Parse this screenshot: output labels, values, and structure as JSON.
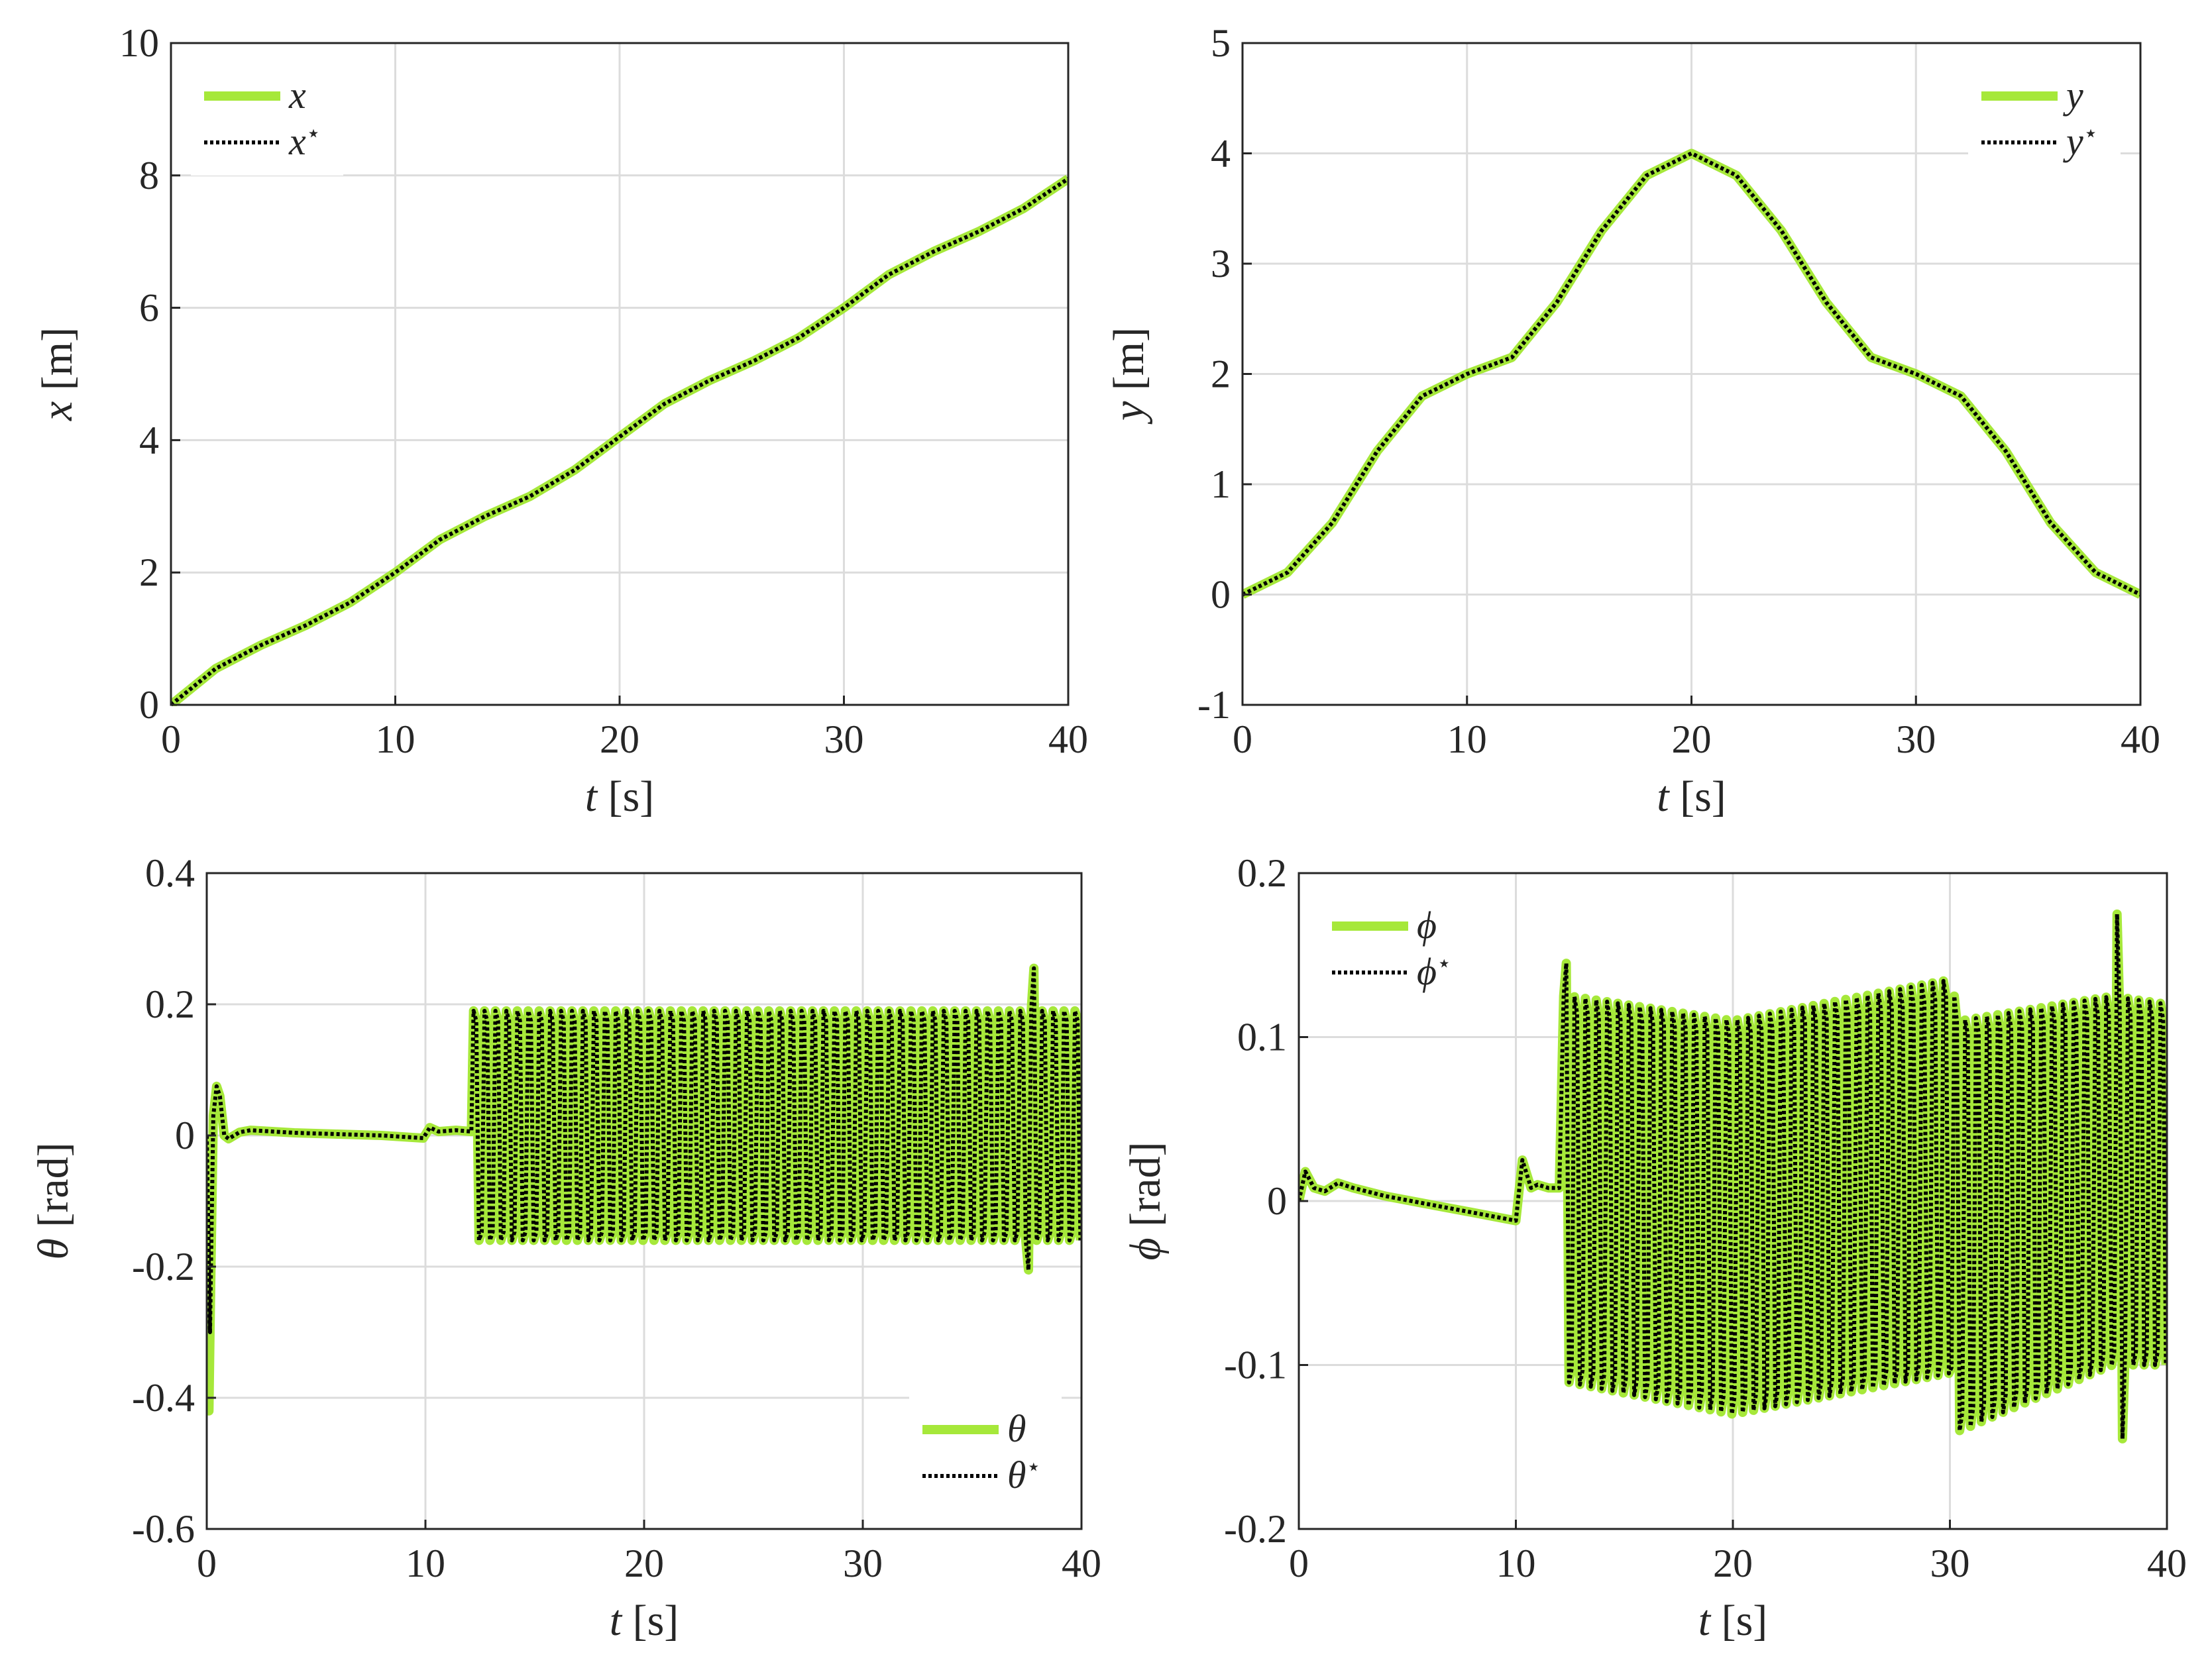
{
  "colors": {
    "actual": "#a6e83a",
    "reference": "#000000",
    "grid": "#dcdcdc",
    "axis": "#262626"
  },
  "chart_data": [
    {
      "type": "line",
      "panel": "top-left",
      "xlabel": {
        "var": "t",
        "unit": "[s]"
      },
      "ylabel": {
        "var": "x",
        "unit": "[m]"
      },
      "xlim": [
        0,
        40
      ],
      "ylim": [
        0,
        10
      ],
      "xticks": [
        0,
        10,
        20,
        30,
        40
      ],
      "xtick_labels": [
        "0",
        "10",
        "20",
        "30",
        "40"
      ],
      "yticks": [
        0,
        2,
        4,
        6,
        8,
        10
      ],
      "ytick_labels": [
        "0",
        "2",
        "4",
        "6",
        "8",
        "10"
      ],
      "grid": true,
      "legend": {
        "position": "top-left",
        "entries": [
          {
            "label": "x",
            "sup": "",
            "style": "solid"
          },
          {
            "label": "x",
            "sup": "⋆",
            "style": "dotted"
          }
        ]
      },
      "series": [
        {
          "name": "x",
          "style": "solid",
          "x": [
            0,
            2,
            4,
            6,
            8,
            10,
            12,
            14,
            16,
            18,
            20,
            22,
            24,
            26,
            28,
            30,
            32,
            34,
            36,
            38,
            40
          ],
          "y": [
            0,
            0.55,
            0.9,
            1.2,
            1.55,
            2.0,
            2.5,
            2.85,
            3.15,
            3.55,
            4.05,
            4.55,
            4.9,
            5.2,
            5.55,
            6.0,
            6.5,
            6.85,
            7.15,
            7.5,
            7.95
          ]
        },
        {
          "name": "x⋆",
          "style": "dotted",
          "x": [
            0,
            2,
            4,
            6,
            8,
            10,
            12,
            14,
            16,
            18,
            20,
            22,
            24,
            26,
            28,
            30,
            32,
            34,
            36,
            38,
            40
          ],
          "y": [
            0,
            0.55,
            0.9,
            1.2,
            1.55,
            2.0,
            2.5,
            2.85,
            3.15,
            3.55,
            4.05,
            4.55,
            4.9,
            5.2,
            5.55,
            6.0,
            6.5,
            6.85,
            7.15,
            7.5,
            7.95
          ]
        }
      ]
    },
    {
      "type": "line",
      "panel": "top-right",
      "xlabel": {
        "var": "t",
        "unit": "[s]"
      },
      "ylabel": {
        "var": "y",
        "unit": "[m]"
      },
      "xlim": [
        0,
        40
      ],
      "ylim": [
        -1,
        5
      ],
      "xticks": [
        0,
        10,
        20,
        30,
        40
      ],
      "xtick_labels": [
        "0",
        "10",
        "20",
        "30",
        "40"
      ],
      "yticks": [
        -1,
        0,
        1,
        2,
        3,
        4,
        5
      ],
      "ytick_labels": [
        "-1",
        "0",
        "1",
        "2",
        "3",
        "4",
        "5"
      ],
      "grid": true,
      "legend": {
        "position": "top-right",
        "entries": [
          {
            "label": "y",
            "sup": "",
            "style": "solid"
          },
          {
            "label": "y",
            "sup": "⋆",
            "style": "dotted"
          }
        ]
      },
      "series": [
        {
          "name": "y",
          "style": "solid",
          "x": [
            0,
            2,
            4,
            6,
            8,
            10,
            12,
            14,
            16,
            18,
            20,
            22,
            24,
            26,
            28,
            30,
            32,
            34,
            36,
            38,
            40
          ],
          "y": [
            0,
            0.2,
            0.65,
            1.3,
            1.8,
            2.0,
            2.15,
            2.65,
            3.3,
            3.8,
            4.0,
            3.8,
            3.3,
            2.65,
            2.15,
            2.0,
            1.8,
            1.3,
            0.65,
            0.2,
            0
          ]
        },
        {
          "name": "y⋆",
          "style": "dotted",
          "x": [
            0,
            2,
            4,
            6,
            8,
            10,
            12,
            14,
            16,
            18,
            20,
            22,
            24,
            26,
            28,
            30,
            32,
            34,
            36,
            38,
            40
          ],
          "y": [
            0,
            0.2,
            0.65,
            1.3,
            1.8,
            2.0,
            2.15,
            2.65,
            3.3,
            3.8,
            4.0,
            3.8,
            3.3,
            2.65,
            2.15,
            2.0,
            1.8,
            1.3,
            0.65,
            0.2,
            0
          ]
        }
      ]
    },
    {
      "type": "line",
      "panel": "bottom-left",
      "xlabel": {
        "var": "t",
        "unit": "[s]"
      },
      "ylabel": {
        "var": "θ",
        "unit": "[rad]"
      },
      "xlim": [
        0,
        40
      ],
      "ylim": [
        -0.6,
        0.4
      ],
      "xticks": [
        0,
        10,
        20,
        30,
        40
      ],
      "xtick_labels": [
        "0",
        "10",
        "20",
        "30",
        "40"
      ],
      "yticks": [
        -0.6,
        -0.4,
        -0.2,
        0,
        0.2,
        0.4
      ],
      "ytick_labels": [
        "-0.6",
        "-0.4",
        "-0.2",
        "0",
        "0.2",
        "0.4"
      ],
      "grid": true,
      "legend": {
        "position": "bottom-right",
        "entries": [
          {
            "label": "θ",
            "sup": "",
            "style": "solid"
          },
          {
            "label": "θ",
            "sup": "⋆",
            "style": "dotted"
          }
        ]
      },
      "series": [
        {
          "name": "θ",
          "style": "solid",
          "x": [
            0,
            0.1,
            0.15,
            0.3,
            0.45,
            0.6,
            0.8,
            1.0,
            1.5,
            2,
            4,
            6,
            8,
            9.9,
            10.2,
            10.6,
            11,
            11.4,
            12.1
          ],
          "y": [
            0,
            -0.42,
            -0.3,
            0.03,
            0.075,
            0.06,
            0.0,
            -0.005,
            0.005,
            0.008,
            0.004,
            0.002,
            0.0,
            -0.004,
            0.012,
            0.006,
            0.007,
            0.008,
            0.006
          ]
        },
        {
          "name": "θ⋆",
          "style": "dotted",
          "x": [
            0,
            0.15,
            0.3,
            0.45,
            0.6,
            0.8,
            1.0,
            1.5,
            2,
            4,
            6,
            8,
            9.9,
            10.2,
            10.6,
            11,
            11.4,
            12.1
          ],
          "y": [
            0,
            -0.3,
            0.03,
            0.075,
            0.06,
            0.0,
            -0.005,
            0.005,
            0.008,
            0.004,
            0.002,
            0.0,
            -0.004,
            0.012,
            0.006,
            0.007,
            0.008,
            0.006
          ]
        }
      ],
      "oscillation": {
        "t_start": 12.2,
        "t_end": 40,
        "period": 0.5,
        "upper": 0.19,
        "lower": -0.16,
        "spikes": [
          {
            "t": 37.8,
            "value": 0.255
          },
          {
            "t": 37.6,
            "value": -0.205
          }
        ]
      }
    },
    {
      "type": "line",
      "panel": "bottom-right",
      "xlabel": {
        "var": "t",
        "unit": "[s]"
      },
      "ylabel": {
        "var": "ϕ",
        "unit": "[rad]"
      },
      "xlim": [
        0,
        40
      ],
      "ylim": [
        -0.2,
        0.2
      ],
      "xticks": [
        0,
        10,
        20,
        30,
        40
      ],
      "xtick_labels": [
        "0",
        "10",
        "20",
        "30",
        "40"
      ],
      "yticks": [
        -0.2,
        -0.1,
        0,
        0.1,
        0.2
      ],
      "ytick_labels": [
        "-0.2",
        "-0.1",
        "0",
        "0.1",
        "0.2"
      ],
      "grid": true,
      "legend": {
        "position": "top-left",
        "entries": [
          {
            "label": "ϕ",
            "sup": "",
            "style": "solid"
          },
          {
            "label": "ϕ",
            "sup": "⋆",
            "style": "dotted"
          }
        ]
      },
      "series": [
        {
          "name": "ϕ",
          "style": "solid",
          "x": [
            0,
            0.3,
            0.7,
            1.2,
            1.8,
            2.5,
            4,
            6,
            8,
            10,
            10.3,
            10.7,
            11,
            11.5,
            12
          ],
          "y": [
            0,
            0.018,
            0.008,
            0.006,
            0.011,
            0.008,
            0.003,
            -0.002,
            -0.007,
            -0.012,
            0.025,
            0.008,
            0.01,
            0.008,
            0.008
          ]
        },
        {
          "name": "ϕ⋆",
          "style": "dotted",
          "x": [
            0,
            0.3,
            0.7,
            1.2,
            1.8,
            2.5,
            4,
            6,
            8,
            10,
            10.3,
            10.7,
            11,
            11.5,
            12
          ],
          "y": [
            0,
            0.018,
            0.008,
            0.006,
            0.011,
            0.008,
            0.003,
            -0.002,
            -0.007,
            -0.012,
            0.025,
            0.008,
            0.01,
            0.008,
            0.008
          ]
        }
      ],
      "oscillation": {
        "t_start": 12.2,
        "t_end": 40,
        "period": 0.5,
        "upper_envelope": {
          "t": [
            12.5,
            20,
            30,
            30.5,
            37.5,
            40
          ],
          "v": [
            0.125,
            0.11,
            0.135,
            0.11,
            0.125,
            0.12
          ]
        },
        "lower_envelope": {
          "t": [
            12.2,
            20,
            30,
            30.5,
            37.5,
            40
          ],
          "v": [
            -0.11,
            -0.13,
            -0.105,
            -0.14,
            -0.1,
            -0.1
          ]
        },
        "spikes": [
          {
            "t": 12.5,
            "value": 0.145
          },
          {
            "t": 37.6,
            "value": 0.175
          },
          {
            "t": 37.9,
            "value": -0.145
          },
          {
            "t": 30.4,
            "value": -0.14
          }
        ]
      }
    }
  ]
}
